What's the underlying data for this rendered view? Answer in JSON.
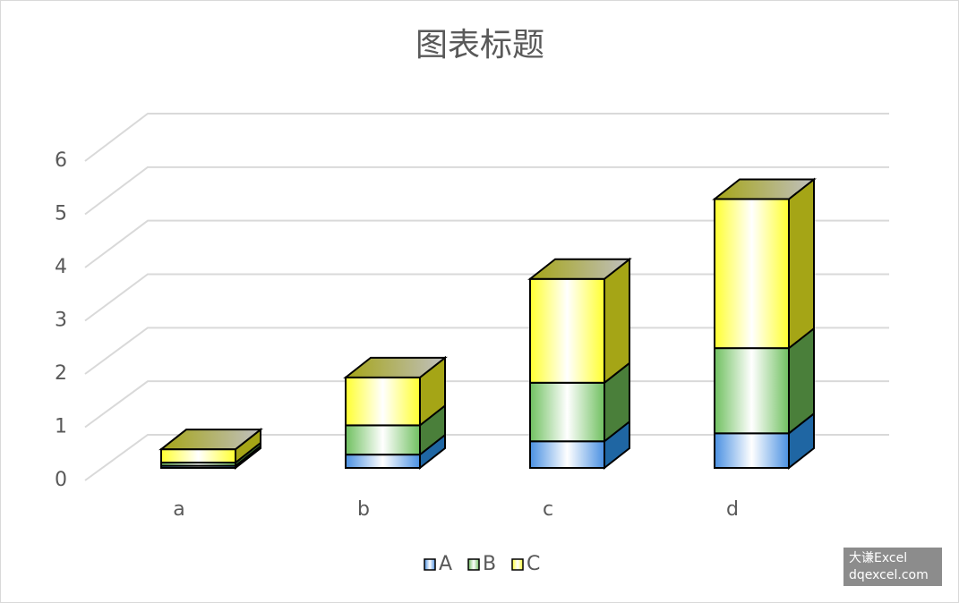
{
  "chart_data": {
    "type": "bar",
    "stacked": true,
    "three_d": true,
    "title": "图表标题",
    "categories": [
      "a",
      "b",
      "c",
      "d"
    ],
    "series": [
      {
        "name": "A",
        "color": "#4a90e2",
        "side_color": "#1f66a3",
        "values": [
          0.04,
          0.25,
          0.5,
          0.65
        ]
      },
      {
        "name": "B",
        "color": "#70c060",
        "side_color": "#4a7f3a",
        "values": [
          0.06,
          0.55,
          1.1,
          1.6
        ]
      },
      {
        "name": "C",
        "color": "#ffff30",
        "side_color": "#a5a516",
        "values": [
          0.25,
          0.9,
          1.95,
          2.8
        ]
      }
    ],
    "ylim": [
      0,
      6
    ],
    "yticks": [
      0,
      1,
      2,
      3,
      4,
      5,
      6
    ],
    "grid": true,
    "legend": "bottom",
    "watermark": [
      "大谦Excel",
      "dqexcel.com"
    ]
  }
}
